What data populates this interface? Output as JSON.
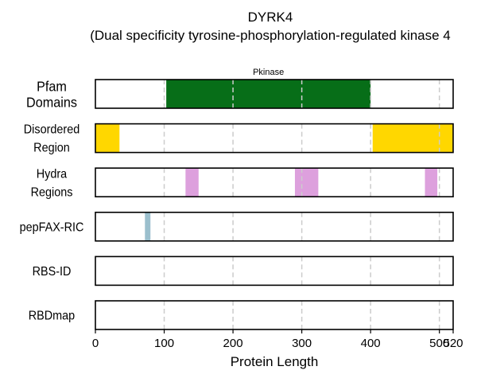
{
  "chart_data": {
    "type": "track",
    "title": "DYRK4",
    "subtitle": "(Dual specificity tyrosine-phosphorylation-regulated kinase 4",
    "xlabel": "Protein Length",
    "xlim": [
      0,
      520
    ],
    "xticks": [
      0,
      100,
      200,
      300,
      400,
      500,
      520
    ],
    "grid_x": [
      100,
      200,
      300,
      400,
      500
    ],
    "tracks": [
      {
        "label": [
          "Pfam",
          "Domains"
        ],
        "color": "#076e18",
        "segments": [
          {
            "start": 103,
            "end": 400,
            "label": "Pkinase"
          }
        ]
      },
      {
        "label": [
          "Disordered",
          "Region"
        ],
        "color": "#ffd700",
        "segments": [
          {
            "start": 0,
            "end": 35
          },
          {
            "start": 403,
            "end": 520
          }
        ]
      },
      {
        "label": [
          "Hydra",
          "Regions"
        ],
        "color": "#dda0dd",
        "segments": [
          {
            "start": 131,
            "end": 150
          },
          {
            "start": 290,
            "end": 324
          },
          {
            "start": 479,
            "end": 497
          }
        ]
      },
      {
        "label": [
          "pepFAX-RIC"
        ],
        "color": "#9bbfcd",
        "segments": [
          {
            "start": 72,
            "end": 80
          }
        ]
      },
      {
        "label": [
          "RBS-ID"
        ],
        "color": "#cccccc",
        "segments": []
      },
      {
        "label": [
          "RBDmap"
        ],
        "color": "#cccccc",
        "segments": []
      }
    ]
  }
}
